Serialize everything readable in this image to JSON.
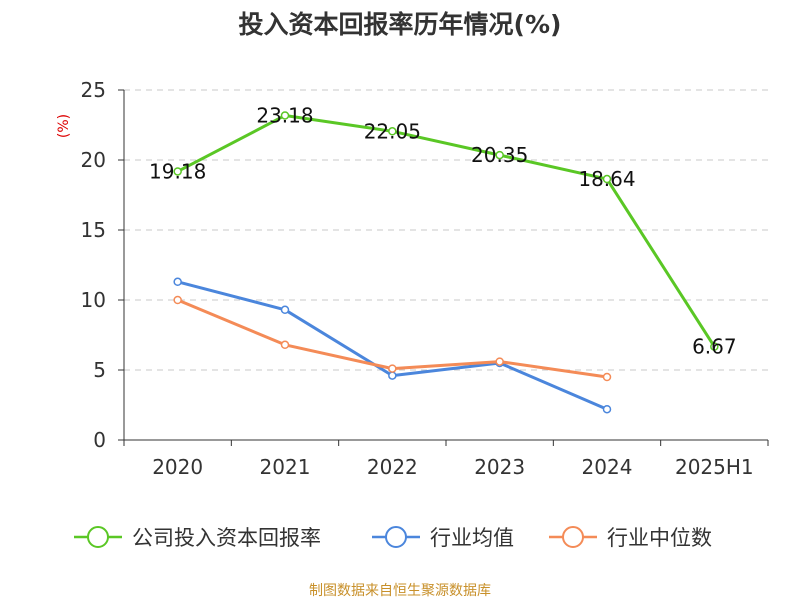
{
  "chart_data": {
    "type": "line",
    "title": "投入资本回报率历年情况(%)",
    "yunit": "(%)",
    "categories": [
      "2020",
      "2021",
      "2022",
      "2023",
      "2024",
      "2025H1"
    ],
    "ylim": [
      0,
      25
    ],
    "yticks": [
      0,
      5,
      10,
      15,
      20,
      25
    ],
    "grid": true,
    "legend_position": "bottom",
    "series": [
      {
        "name": "公司投入资本回报率",
        "color": "#5ac725",
        "values": [
          19.18,
          23.18,
          22.05,
          20.35,
          18.64,
          6.67
        ],
        "labels": [
          "19.18",
          "23.18",
          "22.05",
          "20.35",
          "18.64",
          "6.67"
        ]
      },
      {
        "name": "行业均值",
        "color": "#4b86dc",
        "values": [
          11.3,
          9.3,
          4.6,
          5.5,
          2.2,
          null
        ]
      },
      {
        "name": "行业中位数",
        "color": "#f48b57",
        "values": [
          10.0,
          6.8,
          5.1,
          5.6,
          4.5,
          null
        ]
      }
    ]
  },
  "source": "制图数据来自恒生聚源数据库",
  "source_color": "#c8902a"
}
